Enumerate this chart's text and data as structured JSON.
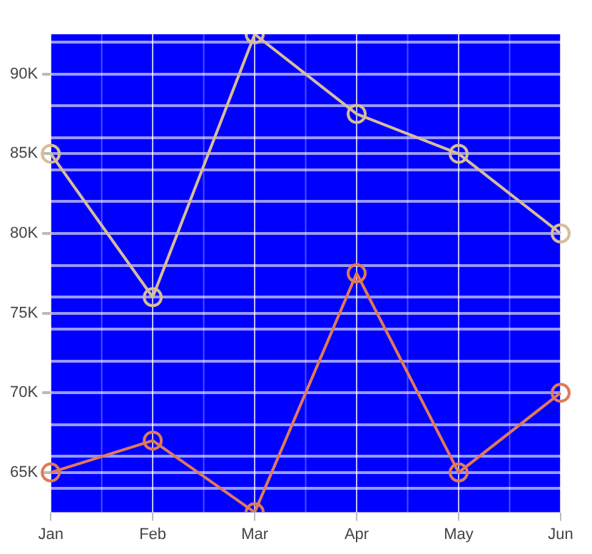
{
  "chart_data": {
    "type": "line",
    "categories": [
      "Jan",
      "Feb",
      "Mar",
      "Apr",
      "May",
      "Jun"
    ],
    "series": [
      {
        "color": "#d8bd98",
        "values": [
          85000,
          76000,
          92500,
          87500,
          85000,
          80000
        ]
      },
      {
        "color": "#e07a58",
        "values": [
          65000,
          67000,
          62500,
          77500,
          65000,
          70000
        ]
      }
    ],
    "ylim": [
      62500,
      92500
    ],
    "yticks": [
      {
        "value": 64000,
        "label": null
      },
      {
        "value": 65000,
        "label": "65K"
      },
      {
        "value": 66000,
        "label": null
      },
      {
        "value": 68000,
        "label": null
      },
      {
        "value": 70000,
        "label": "70K"
      },
      {
        "value": 72000,
        "label": null
      },
      {
        "value": 74000,
        "label": null
      },
      {
        "value": 75000,
        "label": "75K"
      },
      {
        "value": 76000,
        "label": null
      },
      {
        "value": 78000,
        "label": null
      },
      {
        "value": 80000,
        "label": "80K"
      },
      {
        "value": 82000,
        "label": null
      },
      {
        "value": 84000,
        "label": null
      },
      {
        "value": 85000,
        "label": "85K"
      },
      {
        "value": 86000,
        "label": null
      },
      {
        "value": 88000,
        "label": null
      },
      {
        "value": 90000,
        "label": "90K"
      },
      {
        "value": 92000,
        "label": null
      }
    ],
    "grid": true,
    "marker": "circle",
    "line_style": "solid",
    "legend": false
  }
}
